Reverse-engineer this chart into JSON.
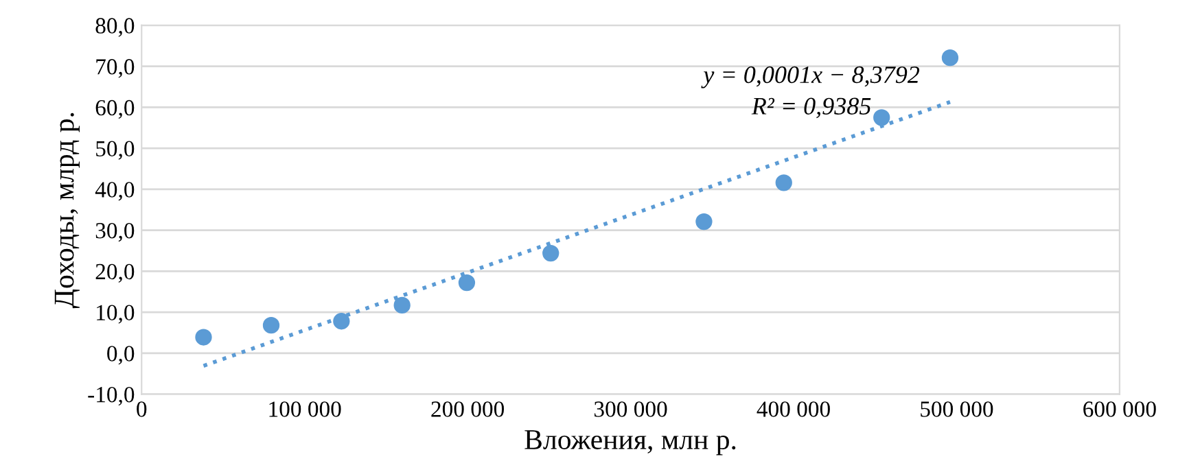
{
  "chart_data": {
    "type": "scatter",
    "xlabel": "Вложения, млн р.",
    "ylabel": "Доходы, млрд р.",
    "series": [
      {
        "color": "#5b9bd5",
        "marker": "circle",
        "x": [
          38000,
          79500,
          122600,
          159800,
          199500,
          251000,
          345000,
          394000,
          454000,
          496000
        ],
        "values": [
          3.9,
          6.8,
          7.8,
          11.7,
          17.2,
          24.4,
          32.1,
          41.6,
          57.5,
          72.1
        ]
      },
      {
        "type": "line",
        "color": "#5b9bd5",
        "line_style": "dotted",
        "x": [
          38000,
          496000
        ],
        "values": [
          -3.1,
          61.3
        ]
      }
    ],
    "annotations": [
      "y = 0,0001x − 8,3792",
      "R² = 0,9385"
    ],
    "xlim": [
      0,
      600000
    ],
    "xticks": [
      {
        "value": 0,
        "label": "0"
      },
      {
        "value": 100000,
        "label": "100 000"
      },
      {
        "value": 200000,
        "label": "200 000"
      },
      {
        "value": 300000,
        "label": "300 000"
      },
      {
        "value": 400000,
        "label": "400 000"
      },
      {
        "value": 500000,
        "label": "500 000"
      },
      {
        "value": 600000,
        "label": "600 000"
      }
    ],
    "ylim": [
      -10,
      80
    ],
    "yticks": [
      {
        "value": -10,
        "label": "-10,0"
      },
      {
        "value": 0,
        "label": "0,0"
      },
      {
        "value": 10,
        "label": "10,0"
      },
      {
        "value": 20,
        "label": "20,0"
      },
      {
        "value": 30,
        "label": "30,0"
      },
      {
        "value": 40,
        "label": "40,0"
      },
      {
        "value": 50,
        "label": "50,0"
      },
      {
        "value": 60,
        "label": "60,0"
      },
      {
        "value": 70,
        "label": "70,0"
      },
      {
        "value": 80,
        "label": "80,0"
      }
    ],
    "grid": "y",
    "legend": false
  }
}
